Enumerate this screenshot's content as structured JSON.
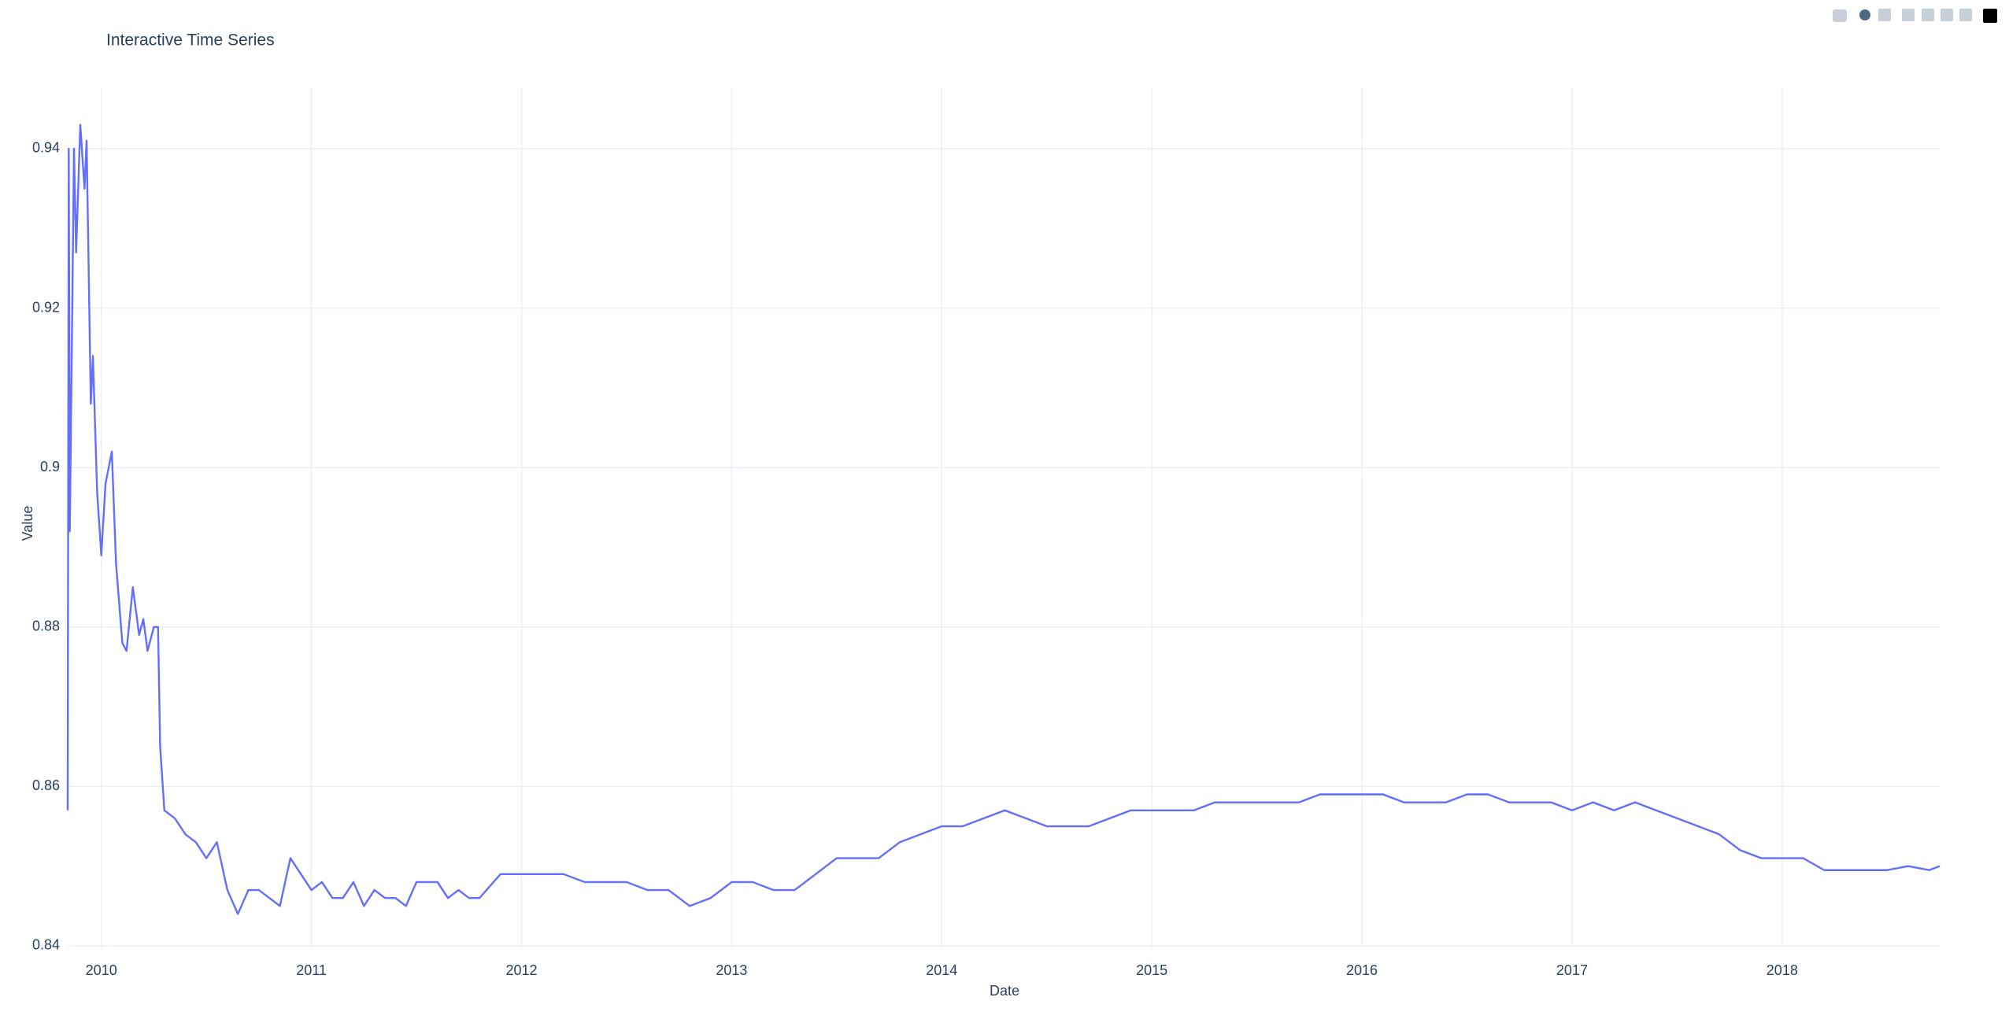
{
  "chart_data": {
    "type": "line",
    "title": "Interactive Time Series",
    "xlabel": "Date",
    "ylabel": "Value",
    "color": "#636efa",
    "grid": true,
    "x": [
      2009.84,
      2009.845,
      2009.85,
      2009.87,
      2009.88,
      2009.9,
      2009.92,
      2009.93,
      2009.95,
      2009.96,
      2009.98,
      2010.0,
      2010.02,
      2010.05,
      2010.07,
      2010.1,
      2010.12,
      2010.15,
      2010.18,
      2010.2,
      2010.22,
      2010.25,
      2010.27,
      2010.28,
      2010.3,
      2010.35,
      2010.4,
      2010.45,
      2010.5,
      2010.55,
      2010.6,
      2010.65,
      2010.7,
      2010.75,
      2010.8,
      2010.85,
      2010.9,
      2010.95,
      2011.0,
      2011.05,
      2011.1,
      2011.15,
      2011.2,
      2011.25,
      2011.3,
      2011.35,
      2011.4,
      2011.45,
      2011.5,
      2011.55,
      2011.6,
      2011.65,
      2011.7,
      2011.75,
      2011.8,
      2011.9,
      2012.0,
      2012.1,
      2012.2,
      2012.3,
      2012.4,
      2012.5,
      2012.6,
      2012.7,
      2012.8,
      2012.9,
      2013.0,
      2013.1,
      2013.2,
      2013.3,
      2013.4,
      2013.5,
      2013.6,
      2013.7,
      2013.8,
      2013.9,
      2014.0,
      2014.1,
      2014.2,
      2014.3,
      2014.4,
      2014.5,
      2014.6,
      2014.7,
      2014.8,
      2014.9,
      2015.0,
      2015.1,
      2015.2,
      2015.3,
      2015.4,
      2015.5,
      2015.6,
      2015.7,
      2015.8,
      2015.9,
      2016.0,
      2016.1,
      2016.2,
      2016.3,
      2016.4,
      2016.5,
      2016.6,
      2016.7,
      2016.8,
      2016.9,
      2017.0,
      2017.1,
      2017.2,
      2017.3,
      2017.4,
      2017.5,
      2017.6,
      2017.7,
      2017.8,
      2017.9,
      2018.0,
      2018.1,
      2018.2,
      2018.3,
      2018.4,
      2018.5,
      2018.6,
      2018.7,
      2018.75
    ],
    "values": [
      0.857,
      0.94,
      0.892,
      0.94,
      0.927,
      0.943,
      0.935,
      0.941,
      0.908,
      0.914,
      0.897,
      0.889,
      0.898,
      0.902,
      0.888,
      0.878,
      0.877,
      0.885,
      0.879,
      0.881,
      0.877,
      0.88,
      0.88,
      0.865,
      0.857,
      0.856,
      0.854,
      0.853,
      0.851,
      0.853,
      0.847,
      0.844,
      0.847,
      0.847,
      0.846,
      0.845,
      0.851,
      0.849,
      0.847,
      0.848,
      0.846,
      0.846,
      0.848,
      0.845,
      0.847,
      0.846,
      0.846,
      0.845,
      0.848,
      0.848,
      0.848,
      0.846,
      0.847,
      0.846,
      0.846,
      0.849,
      0.849,
      0.849,
      0.849,
      0.848,
      0.848,
      0.848,
      0.847,
      0.847,
      0.845,
      0.846,
      0.848,
      0.848,
      0.847,
      0.847,
      0.849,
      0.851,
      0.851,
      0.851,
      0.853,
      0.854,
      0.855,
      0.855,
      0.856,
      0.857,
      0.856,
      0.855,
      0.855,
      0.855,
      0.856,
      0.857,
      0.857,
      0.857,
      0.857,
      0.858,
      0.858,
      0.858,
      0.858,
      0.858,
      0.859,
      0.859,
      0.859,
      0.859,
      0.858,
      0.858,
      0.858,
      0.859,
      0.859,
      0.858,
      0.858,
      0.858,
      0.857,
      0.858,
      0.857,
      0.858,
      0.857,
      0.856,
      0.855,
      0.854,
      0.852,
      0.851,
      0.851,
      0.851,
      0.8495,
      0.8495,
      0.8495,
      0.8495,
      0.85,
      0.8495,
      0.85
    ],
    "xlim": [
      2009.84,
      2018.75
    ],
    "xticks": [
      2010,
      2011,
      2012,
      2013,
      2014,
      2015,
      2016,
      2017,
      2018
    ],
    "ylim": [
      0.8398,
      0.9477
    ],
    "yticks": [
      0.84,
      0.86,
      0.88,
      0.9,
      0.92,
      0.94
    ]
  }
}
